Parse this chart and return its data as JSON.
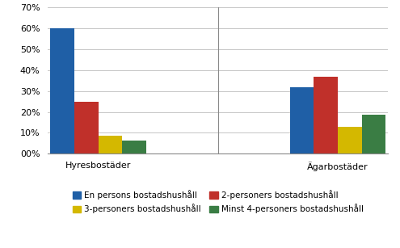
{
  "categories": [
    "Hyresbostäder",
    "Ägarbostäder"
  ],
  "series": [
    {
      "label": "En persons bostadshushåll",
      "color": "#1F5FA6",
      "values": [
        0.6,
        0.32
      ]
    },
    {
      "label": "2-personers bostadshushåll",
      "color": "#C0302A",
      "values": [
        0.25,
        0.37
      ]
    },
    {
      "label": "3-personers bostadshushåll",
      "color": "#D4B800",
      "values": [
        0.085,
        0.13
      ]
    },
    {
      "label": "Minst 4-personers bostadshushåll",
      "color": "#3A7D44",
      "values": [
        0.062,
        0.185
      ]
    }
  ],
  "ylim": [
    0,
    0.7
  ],
  "yticks": [
    0.0,
    0.1,
    0.2,
    0.3,
    0.4,
    0.5,
    0.6,
    0.7
  ],
  "ytick_labels": [
    "00%",
    "10%",
    "20%",
    "30%",
    "40%",
    "50%",
    "60%",
    "70%"
  ],
  "background_color": "#FFFFFF",
  "grid_color": "#BBBBBB",
  "tick_fontsize": 8,
  "legend_fontsize": 7.5,
  "bar_width": 0.15,
  "group_centers": [
    1.0,
    2.5
  ]
}
